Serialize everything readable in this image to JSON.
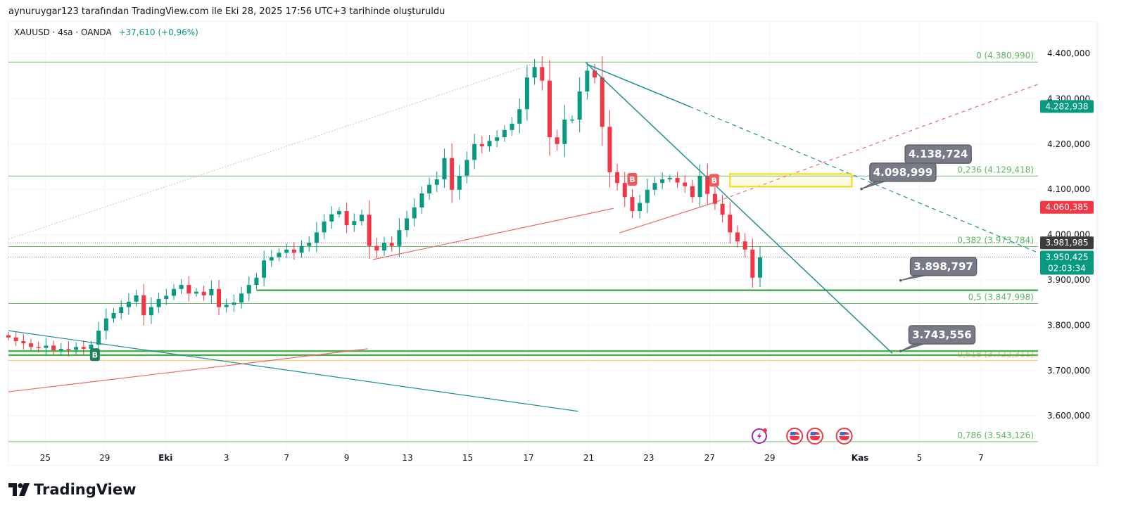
{
  "caption": "aynuruygar123 tarafından TradingView.com ile Eki 28, 2025 17:56 UTC+3 tarihinde oluşturuldu",
  "symbol": {
    "name": "XAUUSD · 4sa · OANDA",
    "change": "+37,610 (+0,96%)"
  },
  "logo": {
    "text": "TradingView"
  },
  "colors": {
    "up": "#089981",
    "down": "#f23645",
    "fib": "#4caf50",
    "fib618": "#f5b83d",
    "teal": "#1e8e96",
    "red": "#f06767",
    "gray_label": "#787b86"
  },
  "chart_data": {
    "type": "candlestick",
    "title": "XAUUSD 4h OANDA",
    "ylim": [
      3520,
      4470
    ],
    "xlim": [
      0,
      137
    ],
    "closes": [
      3773,
      3765,
      3760,
      3752,
      3750,
      3755,
      3745,
      3748,
      3746,
      3752,
      3748,
      3757,
      3788,
      3815,
      3827,
      3840,
      3852,
      3866,
      3822,
      3840,
      3858,
      3865,
      3880,
      3889,
      3870,
      3874,
      3866,
      3880,
      3840,
      3845,
      3850,
      3870,
      3889,
      3905,
      3943,
      3950,
      3960,
      3967,
      3960,
      3975,
      3982,
      4005,
      4029,
      4045,
      4052,
      4021,
      4030,
      4044,
      3975,
      3965,
      3982,
      3975,
      4010,
      4036,
      4060,
      4091,
      4110,
      4122,
      4169,
      4099,
      4130,
      4165,
      4200,
      4195,
      4207,
      4215,
      4231,
      4245,
      4277,
      4347,
      4370,
      4340,
      4215,
      4200,
      4254,
      4254,
      4316,
      4362,
      4347,
      4238,
      4138,
      4114,
      4083,
      4052,
      4070,
      4099,
      4114,
      4122,
      4125,
      4115,
      4107,
      4083,
      4130,
      4090,
      4068,
      4044,
      4005,
      3985,
      3967,
      3905,
      3950
    ],
    "y_ticks": [
      {
        "v": 4400,
        "label": "4.400,000"
      },
      {
        "v": 4300,
        "label": "4.300,000"
      },
      {
        "v": 4200,
        "label": "4.200,000"
      },
      {
        "v": 4100,
        "label": "4.100,000"
      },
      {
        "v": 4000,
        "label": "4.000,000"
      },
      {
        "v": 3900,
        "label": "3.900,000"
      },
      {
        "v": 3800,
        "label": "3.800,000"
      },
      {
        "v": 3700,
        "label": "3.700,000"
      },
      {
        "v": 3600,
        "label": "3.600,000"
      }
    ],
    "x_ticks": [
      {
        "i": 4.9,
        "label": "25"
      },
      {
        "i": 12.8,
        "label": "29"
      },
      {
        "i": 20.9,
        "label": "Eki",
        "bold": true
      },
      {
        "i": 29,
        "label": "3"
      },
      {
        "i": 37,
        "label": "7"
      },
      {
        "i": 45,
        "label": "9"
      },
      {
        "i": 53.1,
        "label": "13"
      },
      {
        "i": 61.1,
        "label": "15"
      },
      {
        "i": 69.2,
        "label": "17"
      },
      {
        "i": 77.2,
        "label": "21"
      },
      {
        "i": 85.2,
        "label": "23"
      },
      {
        "i": 93.3,
        "label": "27"
      },
      {
        "i": 101.3,
        "label": "29"
      },
      {
        "i": 113.3,
        "label": "Kas",
        "bold": true
      },
      {
        "i": 121.2,
        "label": "5"
      },
      {
        "i": 129.4,
        "label": "7"
      }
    ],
    "fib_levels": [
      {
        "price": 4380.99,
        "label": "0 (4.380,990)"
      },
      {
        "price": 4129.418,
        "label": "0,236 (4.129,418)"
      },
      {
        "price": 3973.784,
        "label": "0,382 (3.973,784)"
      },
      {
        "price": 3847.998,
        "label": "0,5 (3.847,998)"
      },
      {
        "price": 3722.311,
        "label": "0,618 (3.722,311)",
        "orange": true
      },
      {
        "price": 3543.126,
        "label": "0,786 (3.543,126)"
      }
    ],
    "horizontal_lines": [
      {
        "from": 33,
        "price": 3877,
        "color": "#4caf50",
        "width": 2.5
      },
      {
        "from": 0,
        "price": 3743,
        "color": "#4caf50",
        "width": 2.5
      },
      {
        "from": 0,
        "price": 3734,
        "color": "#4caf50",
        "width": 2.5
      }
    ],
    "trendlines": [
      {
        "p1": [
          0,
          3990
        ],
        "p2": [
          70,
          4378
        ],
        "color": "#c8c8c8",
        "dash": "2,2",
        "width": 1
      },
      {
        "p1": [
          76.8,
          4380
        ],
        "p2": [
          117.6,
          3738
        ],
        "color": "#1e8e96",
        "width": 1.5
      },
      {
        "p1": [
          77,
          4376
        ],
        "p2": [
          90.6,
          4283
        ],
        "color": "#1e8e96",
        "width": 1.5
      },
      {
        "p1": [
          90.6,
          4283
        ],
        "p2": [
          137,
          3960
        ],
        "color": "#1e8e96",
        "dash": "6,5",
        "width": 1.2
      },
      {
        "p1": [
          0,
          3788
        ],
        "p2": [
          75.8,
          3610
        ],
        "color": "#1e8e96",
        "width": 1.2
      },
      {
        "p1": [
          0,
          3653
        ],
        "p2": [
          47.8,
          3748
        ],
        "color": "#f06767",
        "width": 1.2
      },
      {
        "p1": [
          48.5,
          3945
        ],
        "p2": [
          80.5,
          4058
        ],
        "color": "#f06767",
        "width": 1.2
      },
      {
        "p1": [
          81.3,
          4004
        ],
        "p2": [
          93.4,
          4068
        ],
        "color": "#f06767",
        "width": 1.2
      },
      {
        "p1": [
          93.4,
          4068
        ],
        "p2": [
          137,
          4332
        ],
        "color": "#f06767",
        "dash": "5,5",
        "width": 1.2
      }
    ],
    "rectangle": {
      "i1": 96,
      "i2": 112.2,
      "p1": 4134,
      "p2": 4106,
      "color": "#f5d90a"
    },
    "callouts": [
      {
        "label": "4.138,724",
        "box_i": 119.3,
        "box_p": 4198,
        "tip_i": 113.5,
        "tip_p": 4101
      },
      {
        "label": "4.098,999",
        "box_i": 114.6,
        "box_p": 4158,
        "tip_i": 113.5,
        "tip_p": 4101
      },
      {
        "label": "3.898,797",
        "box_i": 120,
        "box_p": 3950,
        "tip_i": 118.7,
        "tip_p": 3899
      },
      {
        "label": "3.743,556",
        "box_i": 119.8,
        "box_p": 3799,
        "tip_i": 118.7,
        "tip_p": 3743
      }
    ],
    "markers": [
      {
        "i": 11.5,
        "price": 3735,
        "letter": "B",
        "color": "#1b7f5d"
      },
      {
        "i": 83,
        "price": 4122,
        "letter": "B",
        "color": "#f05a5a"
      },
      {
        "i": 93.9,
        "price": 4120,
        "letter": "B",
        "color": "#f05a5a"
      }
    ],
    "price_labels": [
      {
        "price": 4282.938,
        "label": "4.282,938",
        "color": "#089981"
      },
      {
        "price": 4060.385,
        "label": "4.060,385",
        "color": "#f23645"
      },
      {
        "price": 3981.985,
        "label": "3.981,985",
        "color": "#3c3c3c",
        "dotted": true
      },
      {
        "price": 3950.425,
        "label": "3.950,425",
        "sub": "02:03:34",
        "color": "#089981",
        "dotted": true
      }
    ],
    "events": [
      {
        "i": 99.9,
        "icon": "lightning-event-icon"
      },
      {
        "i": 104.6,
        "icon": "us-flag-event-icon"
      },
      {
        "i": 107.3,
        "icon": "us-flag-event-icon"
      },
      {
        "i": 111.2,
        "icon": "us-flag-event-icon"
      }
    ]
  }
}
